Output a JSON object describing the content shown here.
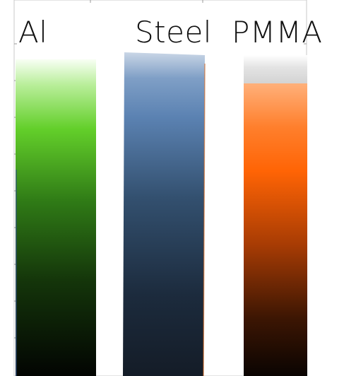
{
  "samples": [
    {
      "label": "Al",
      "color": "#55c71f"
    },
    {
      "label": "Steel",
      "color": "#5b86b8"
    },
    {
      "label": "PMMA",
      "color": "#ff6a0a"
    }
  ],
  "background_color": "#ffffff"
}
